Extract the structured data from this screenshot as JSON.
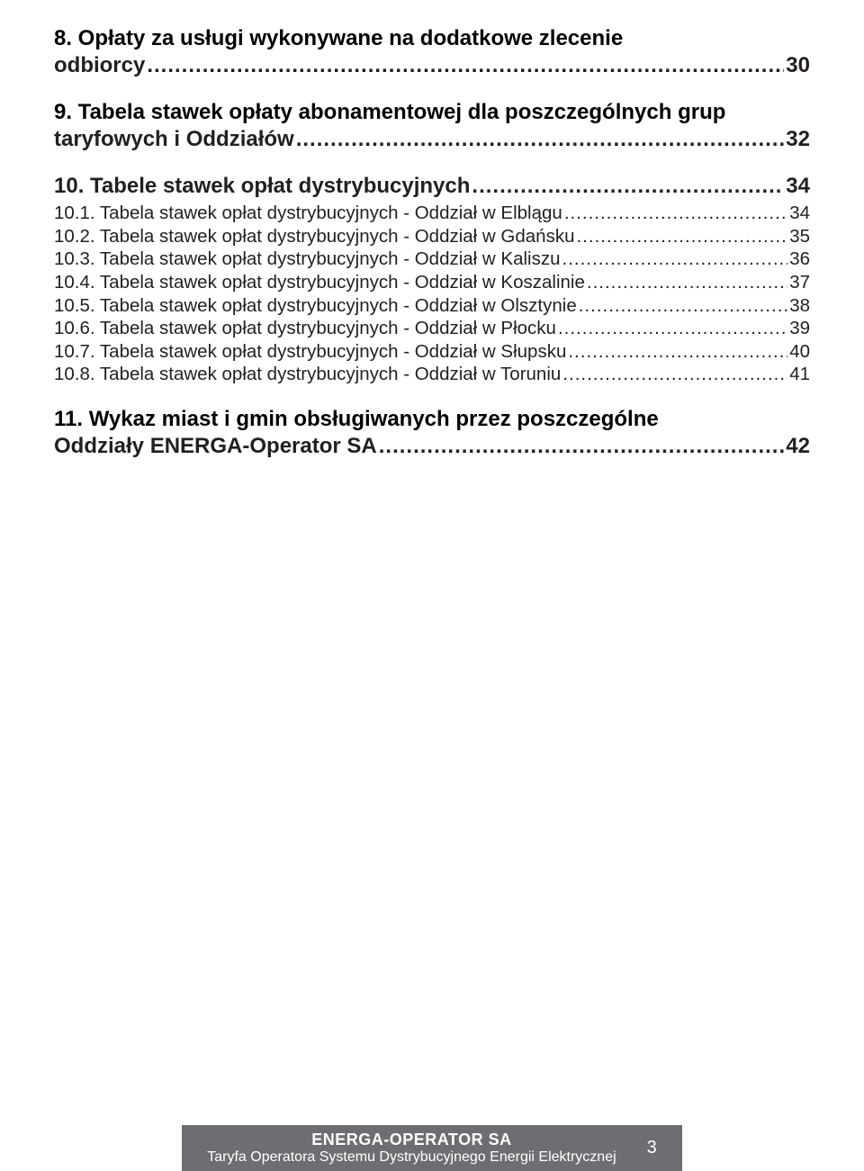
{
  "colors": {
    "text": "#231f20",
    "footer_bg": "#6d6e71",
    "footer_text": "#ffffff",
    "page_bg": "#ffffff"
  },
  "typography": {
    "heading_fontsize_pt": 18,
    "sub_fontsize_pt": 15,
    "footer_title_fontsize_pt": 13,
    "footer_sub_fontsize_pt": 12
  },
  "toc": {
    "sec8": {
      "line1": "8. Opłaty za usługi wykonywane na dodatkowe zlecenie",
      "line2": "odbiorcy",
      "page": "30"
    },
    "sec9": {
      "line1": "9. Tabela stawek opłaty abonamentowej dla poszczególnych grup",
      "line2": "taryfowych i Oddziałów",
      "page": "32"
    },
    "sec10": {
      "title": "10. Tabele stawek opłat dystrybucyjnych",
      "page": "34",
      "items": [
        {
          "label": "10.1. Tabela stawek opłat dystrybucyjnych - Oddział w Elblągu",
          "page": "34"
        },
        {
          "label": "10.2. Tabela stawek opłat dystrybucyjnych - Oddział w Gdańsku",
          "page": "35"
        },
        {
          "label": "10.3. Tabela stawek opłat dystrybucyjnych - Oddział w Kaliszu",
          "page": "36"
        },
        {
          "label": "10.4. Tabela stawek opłat dystrybucyjnych - Oddział w Koszalinie",
          "page": "37"
        },
        {
          "label": "10.5. Tabela stawek opłat dystrybucyjnych - Oddział w Olsztynie",
          "page": "38"
        },
        {
          "label": "10.6. Tabela stawek opłat dystrybucyjnych - Oddział w Płocku",
          "page": "39"
        },
        {
          "label": "10.7. Tabela stawek opłat dystrybucyjnych - Oddział w Słupsku",
          "page": "40"
        },
        {
          "label": "10.8. Tabela stawek opłat dystrybucyjnych - Oddział w Toruniu",
          "page": "41"
        }
      ]
    },
    "sec11": {
      "line1": "11. Wykaz miast i gmin obsługiwanych przez poszczególne",
      "line2": "Oddziały ENERGA-Operator SA",
      "page": "42"
    }
  },
  "footer": {
    "line1": "ENERGA-OPERATOR SA",
    "line2": "Taryfa Operatora Systemu Dystrybucyjnego Energii Elektrycznej",
    "page_number": "3"
  }
}
